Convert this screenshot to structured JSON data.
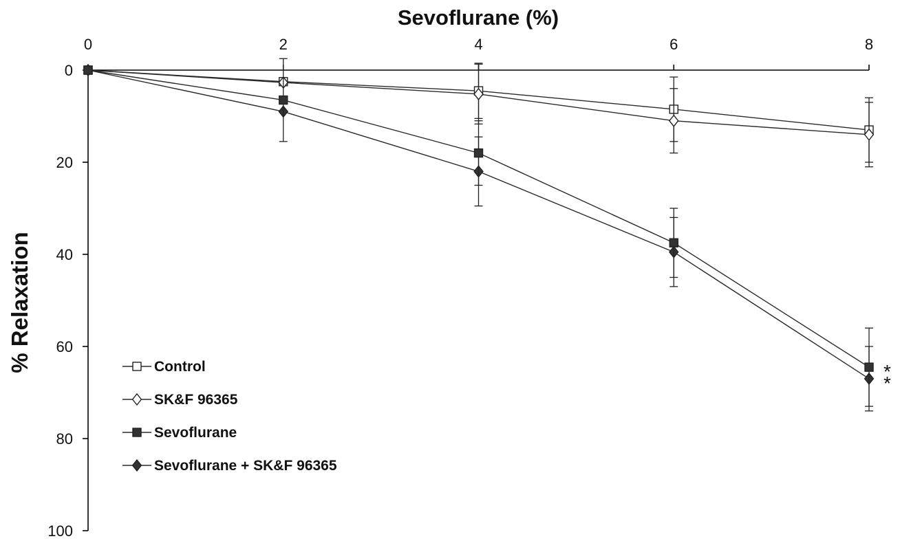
{
  "chart_data": {
    "type": "line",
    "title": "",
    "xlabel": "Sevoflurane (%)",
    "ylabel": "% Relaxation",
    "x": [
      0,
      2,
      4,
      6,
      8
    ],
    "xlim": [
      0,
      8
    ],
    "ylim": [
      0,
      100
    ],
    "x_axis_position": "top",
    "y_axis_inverted": true,
    "x_tick_labels": [
      "0",
      "2",
      "4",
      "6",
      "8"
    ],
    "y_tick_labels": [
      "0",
      "20",
      "40",
      "60",
      "80",
      "100"
    ],
    "grid": false,
    "legend_position": "bottom-left",
    "series": [
      {
        "name": "Control",
        "marker": "open-square",
        "values": [
          0,
          2.5,
          4.5,
          8.5,
          13
        ],
        "error": [
          0,
          0,
          6,
          7,
          7
        ]
      },
      {
        "name": "SK&F 96365",
        "marker": "open-diamond",
        "values": [
          0,
          2.7,
          5.2,
          11,
          14
        ],
        "error": [
          0,
          0,
          6.5,
          7,
          7
        ]
      },
      {
        "name": "Sevoflurane",
        "marker": "filled-square",
        "values": [
          0,
          6.5,
          18,
          37.5,
          64.5
        ],
        "error": [
          0,
          9,
          7,
          7.5,
          8.5
        ]
      },
      {
        "name": "Sevoflurane + SK&F 96365",
        "marker": "filled-diamond",
        "values": [
          0,
          9,
          22,
          39.5,
          67
        ],
        "error": [
          0,
          0,
          7.5,
          7.5,
          7
        ]
      }
    ],
    "annotations": [
      "*",
      "*"
    ],
    "colors": {
      "line": "#2a2a2a",
      "marker_fill": "#333333",
      "marker_open_fill": "#ffffff"
    }
  }
}
